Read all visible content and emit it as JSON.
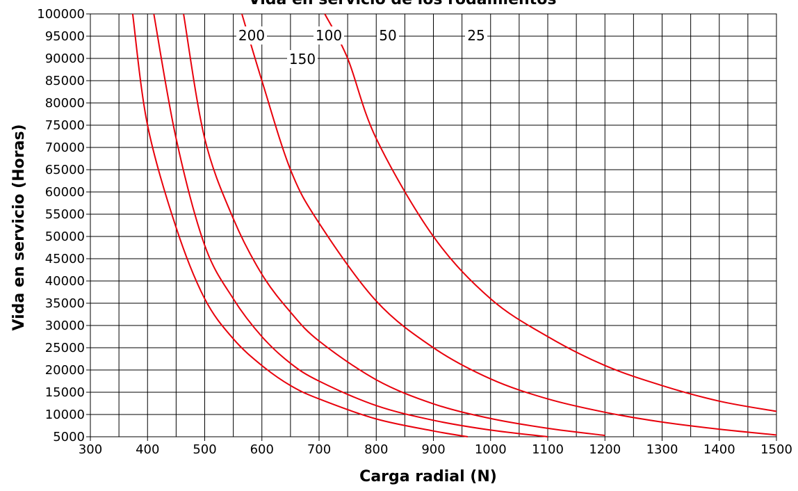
{
  "chart_data": {
    "type": "line",
    "title": "Vida en servicio de los rodamientos",
    "xlabel": "Carga radial (N)",
    "ylabel": "Vida en servicio (Horas)",
    "xlim": [
      300,
      1500
    ],
    "ylim": [
      5000,
      100000
    ],
    "x_ticks": [
      300,
      400,
      500,
      600,
      700,
      800,
      900,
      1000,
      1100,
      1200,
      1300,
      1400,
      1500
    ],
    "y_ticks": [
      5000,
      10000,
      15000,
      20000,
      25000,
      30000,
      35000,
      40000,
      45000,
      50000,
      55000,
      60000,
      65000,
      70000,
      75000,
      80000,
      85000,
      90000,
      95000,
      100000
    ],
    "grid": true,
    "line_color": "#e8000b",
    "series": [
      {
        "name": "25",
        "x": [
          710,
          750,
          800,
          900,
          1000,
          1100,
          1200,
          1300,
          1400,
          1500
        ],
        "y": [
          100000,
          90000,
          72000,
          50000,
          36000,
          27500,
          21000,
          16500,
          13000,
          10700
        ]
      },
      {
        "name": "50",
        "x": [
          565,
          600,
          650,
          700,
          800,
          900,
          1000,
          1100,
          1200,
          1300,
          1400,
          1500
        ],
        "y": [
          100000,
          85000,
          65000,
          53000,
          35500,
          25000,
          18000,
          13500,
          10500,
          8300,
          6700,
          5400
        ]
      },
      {
        "name": "100",
        "x": [
          463,
          500,
          550,
          600,
          650,
          700,
          800,
          900,
          1000,
          1100,
          1200
        ],
        "y": [
          100000,
          72000,
          54000,
          41500,
          33000,
          26500,
          17800,
          12400,
          9100,
          6900,
          5300
        ]
      },
      {
        "name": "150",
        "x": [
          411,
          450,
          500,
          550,
          600,
          650,
          700,
          800,
          900,
          1000,
          1100
        ],
        "y": [
          100000,
          72000,
          48000,
          36000,
          27500,
          21500,
          17500,
          12000,
          8700,
          6500,
          5000
        ]
      },
      {
        "name": "200",
        "x": [
          374,
          400,
          450,
          500,
          550,
          600,
          650,
          700,
          800,
          900,
          960
        ],
        "y": [
          100000,
          75000,
          52000,
          36000,
          27000,
          21000,
          16500,
          13500,
          9000,
          6300,
          5000
        ]
      }
    ]
  }
}
